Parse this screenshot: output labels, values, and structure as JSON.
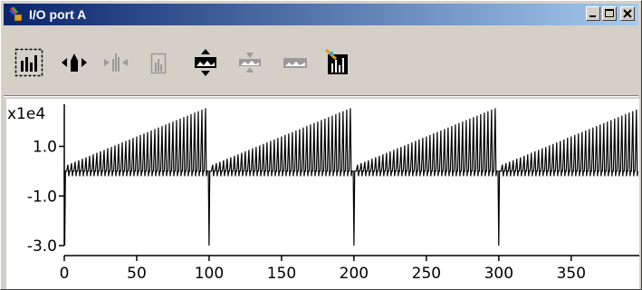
{
  "window": {
    "title": "I/O port A",
    "controls": {
      "minimize": "_",
      "maximize": "□",
      "close": "×"
    }
  },
  "toolbar": {
    "tools": [
      {
        "name": "bar-chart-select-icon",
        "enabled": true
      },
      {
        "name": "expand-horizontal-icon",
        "enabled": true
      },
      {
        "name": "compress-horizontal-icon",
        "enabled": false
      },
      {
        "name": "fit-horizontal-icon",
        "enabled": false
      },
      {
        "name": "expand-vertical-icon",
        "enabled": true
      },
      {
        "name": "compress-vertical-icon",
        "enabled": false
      },
      {
        "name": "fit-vertical-icon",
        "enabled": false
      },
      {
        "name": "chart-edit-icon",
        "enabled": true
      }
    ]
  },
  "chart_data": {
    "type": "line",
    "y_scale_label": "x1e4",
    "yticks": [
      "1.0",
      "-1.0",
      "-3.0"
    ],
    "yticks_values": [
      1.0,
      -1.0,
      -3.0
    ],
    "xticks": [
      "0",
      "50",
      "100",
      "150",
      "200",
      "250",
      "300",
      "350"
    ],
    "xticks_values": [
      0,
      50,
      100,
      150,
      200,
      250,
      300,
      350
    ],
    "xlim": [
      0,
      397
    ],
    "ylim": [
      -3.0,
      2.7
    ],
    "period": 100,
    "baseline": 0.0,
    "spike_peak_start": 0.2,
    "spike_peak_end": 2.6,
    "spike_dip": -0.2,
    "reset_min": -3.0,
    "series": [
      {
        "color": "#000000"
      }
    ]
  }
}
